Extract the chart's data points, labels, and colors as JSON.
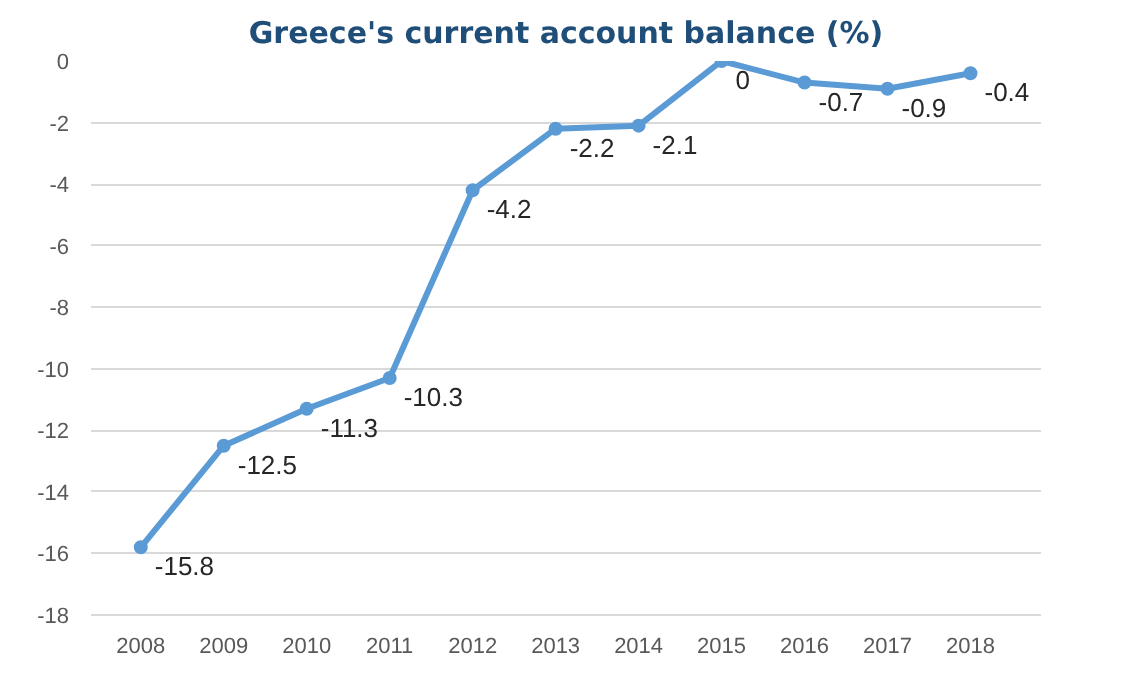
{
  "chart_data": {
    "type": "line",
    "title": "Greece's current account balance (%)",
    "categories": [
      "2008",
      "2009",
      "2010",
      "2011",
      "2012",
      "2013",
      "2014",
      "2015",
      "2016",
      "2017",
      "2018"
    ],
    "series": [
      {
        "color": "#5b9bd5",
        "values": [
          -15.8,
          -12.5,
          -11.3,
          -10.3,
          -4.2,
          -2.2,
          -2.1,
          0,
          -0.7,
          -0.9,
          -0.4
        ]
      }
    ],
    "ylim": [
      -18,
      0
    ],
    "yticks": [
      -18,
      -16,
      -14,
      -12,
      -10,
      -8,
      -6,
      -4,
      -2,
      0
    ],
    "grid": "y",
    "marker": "circle",
    "line_style": "solid",
    "data_labels": true
  }
}
